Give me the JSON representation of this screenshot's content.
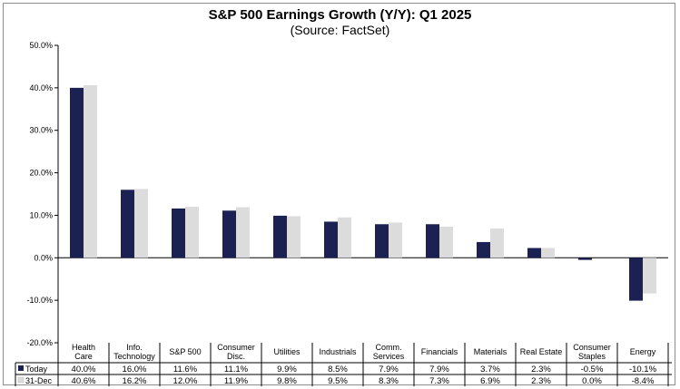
{
  "chart_data": {
    "type": "bar",
    "title": "S&P 500 Earnings Growth (Y/Y): Q1 2025",
    "subtitle": "(Source: FactSet)",
    "categories": [
      [
        "Health",
        "Care"
      ],
      [
        "Info.",
        "Technology"
      ],
      [
        "S&P 500"
      ],
      [
        "Consumer",
        "Disc."
      ],
      [
        "Utilities"
      ],
      [
        "Industrials"
      ],
      [
        "Comm.",
        "Services"
      ],
      [
        "Financials"
      ],
      [
        "Materials"
      ],
      [
        "Real Estate"
      ],
      [
        "Consumer",
        "Staples"
      ],
      [
        "Energy"
      ]
    ],
    "series": [
      {
        "name": "Today",
        "color": "#1b2152",
        "values": [
          40.0,
          16.0,
          11.6,
          11.1,
          9.9,
          8.5,
          7.9,
          7.9,
          3.7,
          2.3,
          -0.5,
          -10.1
        ],
        "labels": [
          "40.0%",
          "16.0%",
          "11.6%",
          "11.1%",
          "9.9%",
          "8.5%",
          "7.9%",
          "7.9%",
          "3.7%",
          "2.3%",
          "-0.5%",
          "-10.1%"
        ]
      },
      {
        "name": "31-Dec",
        "color": "#dcdcdc",
        "values": [
          40.6,
          16.2,
          12.0,
          11.9,
          9.8,
          9.5,
          8.3,
          7.3,
          6.9,
          2.3,
          0.0,
          -8.4
        ],
        "labels": [
          "40.6%",
          "16.2%",
          "12.0%",
          "11.9%",
          "9.8%",
          "9.5%",
          "8.3%",
          "7.3%",
          "6.9%",
          "2.3%",
          "0.0%",
          "-8.4%"
        ]
      }
    ],
    "ylim": [
      -20,
      50
    ],
    "yticks": [
      50,
      40,
      30,
      20,
      10,
      0,
      -10,
      -20
    ],
    "ytick_labels": [
      "50.0%",
      "40.0%",
      "30.0%",
      "20.0%",
      "10.0%",
      "0.0%",
      "-10.0%",
      "-20.0%"
    ],
    "xlabel": "",
    "ylabel": "",
    "grid": false,
    "legend": "data-table"
  }
}
